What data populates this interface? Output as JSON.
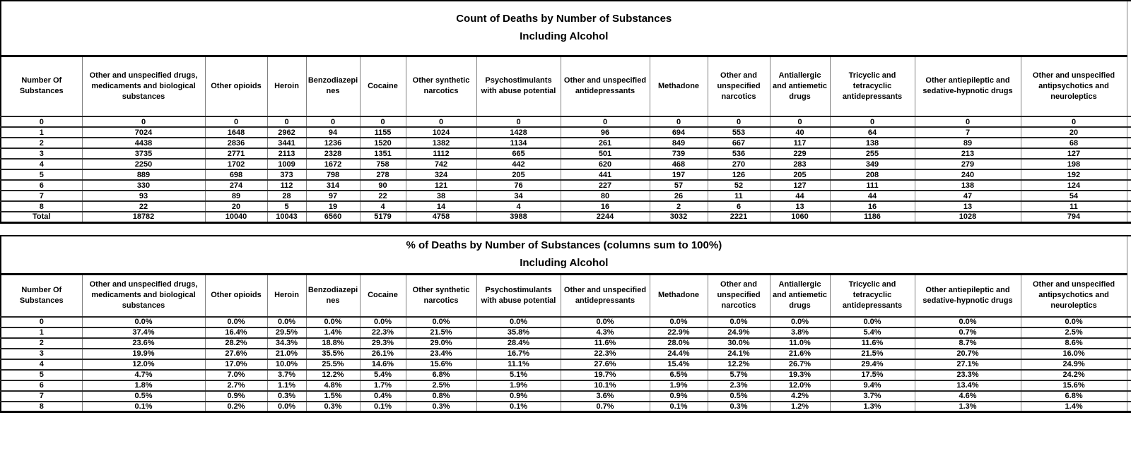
{
  "table_count": {
    "title": "Count of Deaths by Number of Substances",
    "subtitle": "Including Alcohol",
    "row_header": "Number Of Substances",
    "columns": [
      "Other and unspecified drugs, medicaments and biological substances",
      "Other opioids",
      "Heroin",
      "Benzodiazepines",
      "Cocaine",
      "Other synthetic narcotics",
      "Psychostimulants with abuse potential",
      "Other and unspecified antidepressants",
      "Methadone",
      "Other and unspecified narcotics",
      "Antiallergic and antiemetic drugs",
      "Tricyclic and tetracyclic antidepressants",
      "Other antiepileptic and sedative-hypnotic drugs",
      "Other and unspecified antipsychotics and neuroleptics"
    ],
    "rows": [
      {
        "label": "0",
        "values": [
          "0",
          "0",
          "0",
          "0",
          "0",
          "0",
          "0",
          "0",
          "0",
          "0",
          "0",
          "0",
          "0",
          "0"
        ]
      },
      {
        "label": "1",
        "values": [
          "7024",
          "1648",
          "2962",
          "94",
          "1155",
          "1024",
          "1428",
          "96",
          "694",
          "553",
          "40",
          "64",
          "7",
          "20"
        ]
      },
      {
        "label": "2",
        "values": [
          "4438",
          "2836",
          "3441",
          "1236",
          "1520",
          "1382",
          "1134",
          "261",
          "849",
          "667",
          "117",
          "138",
          "89",
          "68"
        ]
      },
      {
        "label": "3",
        "values": [
          "3735",
          "2771",
          "2113",
          "2328",
          "1351",
          "1112",
          "665",
          "501",
          "739",
          "536",
          "229",
          "255",
          "213",
          "127"
        ]
      },
      {
        "label": "4",
        "values": [
          "2250",
          "1702",
          "1009",
          "1672",
          "758",
          "742",
          "442",
          "620",
          "468",
          "270",
          "283",
          "349",
          "279",
          "198"
        ]
      },
      {
        "label": "5",
        "values": [
          "889",
          "698",
          "373",
          "798",
          "278",
          "324",
          "205",
          "441",
          "197",
          "126",
          "205",
          "208",
          "240",
          "192"
        ]
      },
      {
        "label": "6",
        "values": [
          "330",
          "274",
          "112",
          "314",
          "90",
          "121",
          "76",
          "227",
          "57",
          "52",
          "127",
          "111",
          "138",
          "124"
        ]
      },
      {
        "label": "7",
        "values": [
          "93",
          "89",
          "28",
          "97",
          "22",
          "38",
          "34",
          "80",
          "26",
          "11",
          "44",
          "44",
          "47",
          "54"
        ]
      },
      {
        "label": "8",
        "values": [
          "22",
          "20",
          "5",
          "19",
          "4",
          "14",
          "4",
          "16",
          "2",
          "6",
          "13",
          "16",
          "13",
          "11"
        ]
      },
      {
        "label": "Total",
        "values": [
          "18782",
          "10040",
          "10043",
          "6560",
          "5179",
          "4758",
          "3988",
          "2244",
          "3032",
          "2221",
          "1060",
          "1186",
          "1028",
          "794"
        ]
      }
    ]
  },
  "table_percent": {
    "title": "% of Deaths by Number of Substances (columns sum to 100%)",
    "subtitle": "Including Alcohol",
    "row_header": "Number Of Substances",
    "columns": [
      "Other and unspecified drugs, medicaments and biological substances",
      "Other opioids",
      "Heroin",
      "Benzodiazepines",
      "Cocaine",
      "Other synthetic narcotics",
      "Psychostimulants with abuse potential",
      "Other and unspecified antidepressants",
      "Methadone",
      "Other and unspecified narcotics",
      "Antiallergic and antiemetic drugs",
      "Tricyclic and tetracyclic antidepressants",
      "Other antiepileptic and sedative-hypnotic drugs",
      "Other and unspecified antipsychotics and neuroleptics"
    ],
    "rows": [
      {
        "label": "0",
        "values": [
          "0.0%",
          "0.0%",
          "0.0%",
          "0.0%",
          "0.0%",
          "0.0%",
          "0.0%",
          "0.0%",
          "0.0%",
          "0.0%",
          "0.0%",
          "0.0%",
          "0.0%",
          "0.0%"
        ]
      },
      {
        "label": "1",
        "values": [
          "37.4%",
          "16.4%",
          "29.5%",
          "1.4%",
          "22.3%",
          "21.5%",
          "35.8%",
          "4.3%",
          "22.9%",
          "24.9%",
          "3.8%",
          "5.4%",
          "0.7%",
          "2.5%"
        ]
      },
      {
        "label": "2",
        "values": [
          "23.6%",
          "28.2%",
          "34.3%",
          "18.8%",
          "29.3%",
          "29.0%",
          "28.4%",
          "11.6%",
          "28.0%",
          "30.0%",
          "11.0%",
          "11.6%",
          "8.7%",
          "8.6%"
        ]
      },
      {
        "label": "3",
        "values": [
          "19.9%",
          "27.6%",
          "21.0%",
          "35.5%",
          "26.1%",
          "23.4%",
          "16.7%",
          "22.3%",
          "24.4%",
          "24.1%",
          "21.6%",
          "21.5%",
          "20.7%",
          "16.0%"
        ]
      },
      {
        "label": "4",
        "values": [
          "12.0%",
          "17.0%",
          "10.0%",
          "25.5%",
          "14.6%",
          "15.6%",
          "11.1%",
          "27.6%",
          "15.4%",
          "12.2%",
          "26.7%",
          "29.4%",
          "27.1%",
          "24.9%"
        ]
      },
      {
        "label": "5",
        "values": [
          "4.7%",
          "7.0%",
          "3.7%",
          "12.2%",
          "5.4%",
          "6.8%",
          "5.1%",
          "19.7%",
          "6.5%",
          "5.7%",
          "19.3%",
          "17.5%",
          "23.3%",
          "24.2%"
        ]
      },
      {
        "label": "6",
        "values": [
          "1.8%",
          "2.7%",
          "1.1%",
          "4.8%",
          "1.7%",
          "2.5%",
          "1.9%",
          "10.1%",
          "1.9%",
          "2.3%",
          "12.0%",
          "9.4%",
          "13.4%",
          "15.6%"
        ]
      },
      {
        "label": "7",
        "values": [
          "0.5%",
          "0.9%",
          "0.3%",
          "1.5%",
          "0.4%",
          "0.8%",
          "0.9%",
          "3.6%",
          "0.9%",
          "0.5%",
          "4.2%",
          "3.7%",
          "4.6%",
          "6.8%"
        ]
      },
      {
        "label": "8",
        "values": [
          "0.1%",
          "0.2%",
          "0.0%",
          "0.3%",
          "0.1%",
          "0.3%",
          "0.1%",
          "0.7%",
          "0.1%",
          "0.3%",
          "1.2%",
          "1.3%",
          "1.3%",
          "1.4%"
        ]
      }
    ]
  },
  "colors": {
    "border_strong": "#000000",
    "border_grid": "#808080",
    "row_line": "#262626",
    "text": "#000000",
    "background": "#ffffff"
  }
}
